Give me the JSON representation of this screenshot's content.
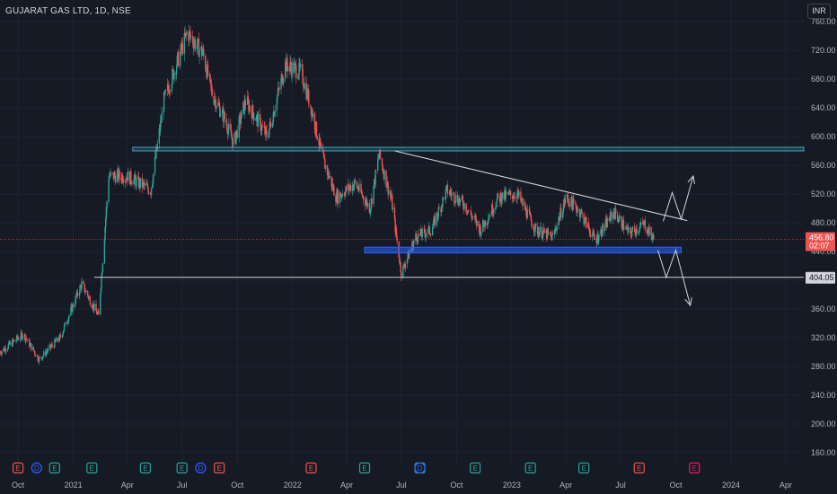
{
  "header": {
    "title": "GUJARAT GAS LTD, 1D, NSE",
    "currency": "INR"
  },
  "colors": {
    "bg": "#161a25",
    "up": "#26a69a",
    "down": "#ef5350",
    "zone": "#2962ff",
    "line": "#d1d4dc",
    "grid": "#1f2330"
  },
  "price_label": {
    "value": "456.80",
    "countdown": "02:07"
  },
  "support_label": "404.05",
  "events": [
    {
      "type": "E",
      "color": "#ef5350",
      "x": "2020-10"
    },
    {
      "type": "D",
      "color": "#2962ff",
      "x": "2020-11"
    },
    {
      "type": "E",
      "color": "#26a69a",
      "x": "2020-12"
    },
    {
      "type": "E",
      "color": "#26a69a",
      "x": "2021-02"
    },
    {
      "type": "E",
      "color": "#26a69a",
      "x": "2021-05"
    },
    {
      "type": "E",
      "color": "#26a69a",
      "x": "2021-07"
    },
    {
      "type": "D",
      "color": "#2962ff",
      "x": "2021-08"
    },
    {
      "type": "E",
      "color": "#ef5350",
      "x": "2021-09"
    },
    {
      "type": "E",
      "color": "#ef5350",
      "x": "2022-02"
    },
    {
      "type": "E",
      "color": "#26a69a",
      "x": "2022-05"
    },
    {
      "type": "E",
      "color": "#26a69a",
      "x": "2022-08"
    },
    {
      "type": "D",
      "color": "#2962ff",
      "x": "2022-08"
    },
    {
      "type": "E",
      "color": "#26a69a",
      "x": "2022-11"
    },
    {
      "type": "E",
      "color": "#26a69a",
      "x": "2023-02"
    },
    {
      "type": "E",
      "color": "#26a69a",
      "x": "2023-05"
    },
    {
      "type": "E",
      "color": "#ef5350",
      "x": "2023-08"
    },
    {
      "type": "E",
      "color": "#e91e63",
      "x": "2023-11"
    }
  ],
  "chart_data": {
    "type": "candlestick",
    "title": "GUJARAT GAS LTD, 1D, NSE",
    "ylim": [
      140,
      790
    ],
    "yticks": [
      "760.00",
      "720.00",
      "680.00",
      "640.00",
      "600.00",
      "560.00",
      "520.00",
      "480.00",
      "440.00",
      "400.00",
      "360.00",
      "320.00",
      "280.00",
      "240.00",
      "200.00",
      "160.00"
    ],
    "xlim": [
      "2020-09",
      "2024-05"
    ],
    "xticks": [
      {
        "label": "Oct",
        "x": "2020-10"
      },
      {
        "label": "2021",
        "x": "2021-01"
      },
      {
        "label": "Apr",
        "x": "2021-04"
      },
      {
        "label": "Jul",
        "x": "2021-07"
      },
      {
        "label": "Oct",
        "x": "2021-10"
      },
      {
        "label": "2022",
        "x": "2022-01"
      },
      {
        "label": "Apr",
        "x": "2022-04"
      },
      {
        "label": "Jul",
        "x": "2022-07"
      },
      {
        "label": "Oct",
        "x": "2022-10"
      },
      {
        "label": "2023",
        "x": "2023-01"
      },
      {
        "label": "Apr",
        "x": "2023-04"
      },
      {
        "label": "Jul",
        "x": "2023-07"
      },
      {
        "label": "Oct",
        "x": "2023-10"
      },
      {
        "label": "2024",
        "x": "2024-01"
      },
      {
        "label": "Apr",
        "x": "2024-04"
      }
    ],
    "last_price": 456.8,
    "key_points": [
      {
        "x": "2020-09-01",
        "y": 300
      },
      {
        "x": "2020-10-10",
        "y": 325
      },
      {
        "x": "2020-11-05",
        "y": 290
      },
      {
        "x": "2020-12-10",
        "y": 320
      },
      {
        "x": "2021-01-15",
        "y": 395
      },
      {
        "x": "2021-02-12",
        "y": 350
      },
      {
        "x": "2021-02-20",
        "y": 440
      },
      {
        "x": "2021-03-01",
        "y": 545
      },
      {
        "x": "2021-04-01",
        "y": 545
      },
      {
        "x": "2021-05-10",
        "y": 525
      },
      {
        "x": "2021-06-01",
        "y": 650
      },
      {
        "x": "2021-07-10",
        "y": 745
      },
      {
        "x": "2021-08-05",
        "y": 715
      },
      {
        "x": "2021-08-20",
        "y": 660
      },
      {
        "x": "2021-09-10",
        "y": 625
      },
      {
        "x": "2021-09-25",
        "y": 590
      },
      {
        "x": "2021-10-15",
        "y": 650
      },
      {
        "x": "2021-11-20",
        "y": 600
      },
      {
        "x": "2021-12-20",
        "y": 700
      },
      {
        "x": "2022-01-15",
        "y": 690
      },
      {
        "x": "2022-02-01",
        "y": 640
      },
      {
        "x": "2022-02-20",
        "y": 570
      },
      {
        "x": "2022-03-15",
        "y": 515
      },
      {
        "x": "2022-04-15",
        "y": 535
      },
      {
        "x": "2022-05-10",
        "y": 500
      },
      {
        "x": "2022-05-25",
        "y": 575
      },
      {
        "x": "2022-06-15",
        "y": 510
      },
      {
        "x": "2022-07-01",
        "y": 410
      },
      {
        "x": "2022-07-25",
        "y": 460
      },
      {
        "x": "2022-08-20",
        "y": 470
      },
      {
        "x": "2022-09-15",
        "y": 525
      },
      {
        "x": "2022-10-15",
        "y": 505
      },
      {
        "x": "2022-11-10",
        "y": 470
      },
      {
        "x": "2022-12-10",
        "y": 515
      },
      {
        "x": "2023-01-10",
        "y": 520
      },
      {
        "x": "2023-02-10",
        "y": 470
      },
      {
        "x": "2023-03-10",
        "y": 460
      },
      {
        "x": "2023-04-01",
        "y": 515
      },
      {
        "x": "2023-04-25",
        "y": 495
      },
      {
        "x": "2023-05-20",
        "y": 455
      },
      {
        "x": "2023-06-20",
        "y": 495
      },
      {
        "x": "2023-07-15",
        "y": 465
      },
      {
        "x": "2023-08-10",
        "y": 478
      },
      {
        "x": "2023-08-25",
        "y": 456.8
      }
    ],
    "annotations": {
      "resistance_zone": {
        "y": [
          580,
          585
        ],
        "x": [
          "2021-04-10",
          "2024-05"
        ]
      },
      "support_zone": {
        "y": [
          438,
          446
        ],
        "x": [
          "2022-05-01",
          "2023-10-10"
        ]
      },
      "horizontal_line": {
        "y": 404.05,
        "x": [
          "2021-02-05",
          "2024-05"
        ]
      },
      "trendline": {
        "from": {
          "x": "2022-06-20",
          "y": 580
        },
        "to": {
          "x": "2023-10-20",
          "y": 483
        }
      },
      "bullish_path": [
        {
          "x": "2023-09-10",
          "y": 482
        },
        {
          "x": "2023-09-25",
          "y": 522
        },
        {
          "x": "2023-10-10",
          "y": 485
        },
        {
          "x": "2023-10-30",
          "y": 545
        }
      ],
      "bearish_path": [
        {
          "x": "2023-09-01",
          "y": 442
        },
        {
          "x": "2023-09-15",
          "y": 404
        },
        {
          "x": "2023-10-01",
          "y": 442
        },
        {
          "x": "2023-10-25",
          "y": 365
        }
      ]
    }
  }
}
